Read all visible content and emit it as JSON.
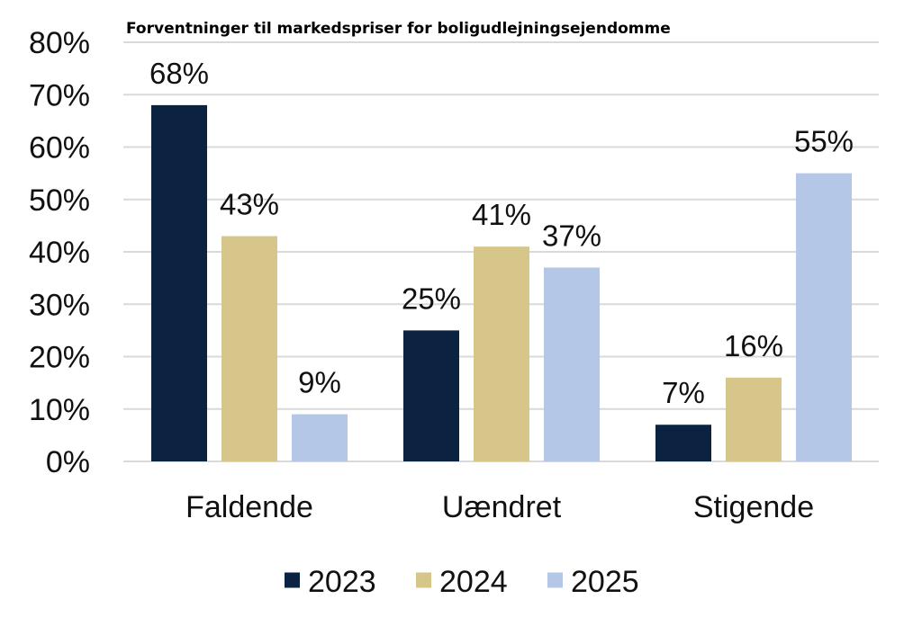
{
  "chart_data": {
    "type": "bar",
    "title": "Forventninger til markedspriser for boligudlejningsejendomme",
    "xlabel": "",
    "ylabel": "",
    "categories": [
      "Faldende",
      "Uændret",
      "Stigende"
    ],
    "series": [
      {
        "name": "2023",
        "color": "#0b2340",
        "values": [
          68,
          25,
          7
        ]
      },
      {
        "name": "2024",
        "color": "#d6c68a",
        "values": [
          43,
          41,
          16
        ]
      },
      {
        "name": "2025",
        "color": "#b4c7e7",
        "values": [
          9,
          37,
          55
        ]
      }
    ],
    "data_labels": [
      [
        "68%",
        "25%",
        "7%"
      ],
      [
        "43%",
        "41%",
        "16%"
      ],
      [
        "9%",
        "37%",
        "55%"
      ]
    ],
    "ylim": [
      0,
      80
    ],
    "yticks": [
      0,
      10,
      20,
      30,
      40,
      50,
      60,
      70,
      80
    ],
    "ytick_labels": [
      "0%",
      "10%",
      "20%",
      "30%",
      "40%",
      "50%",
      "60%",
      "70%",
      "80%"
    ],
    "grid": true,
    "legend_position": "bottom"
  }
}
